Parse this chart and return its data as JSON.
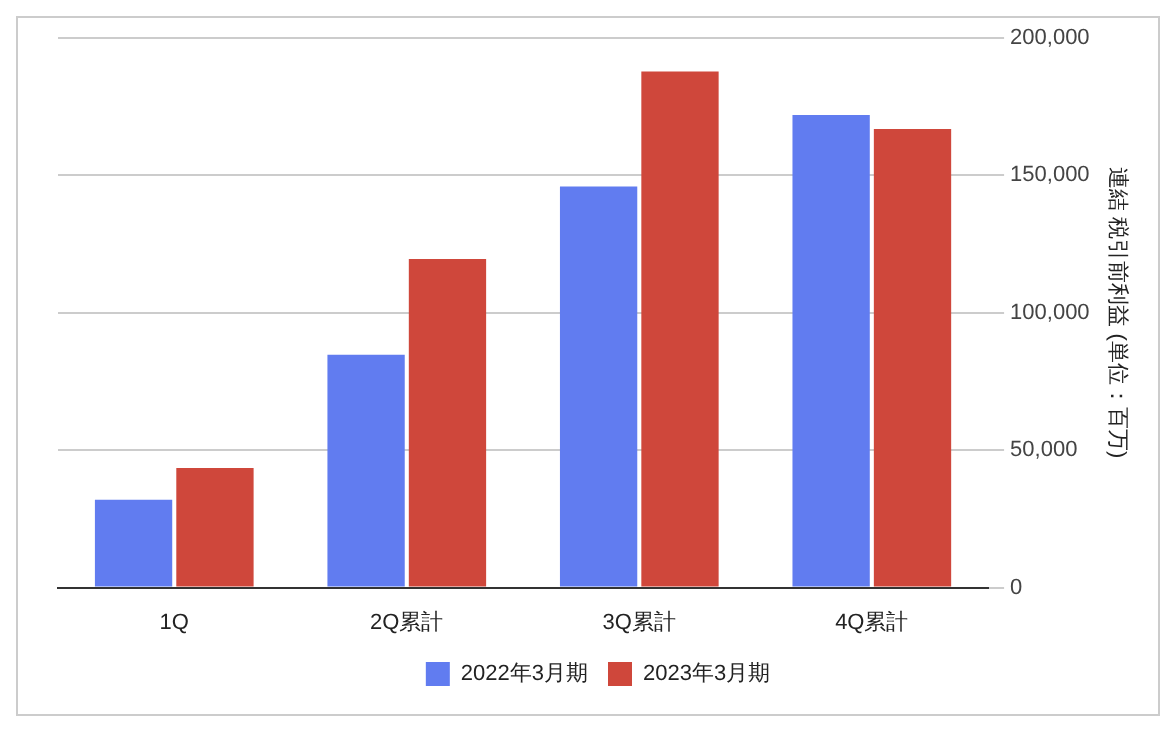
{
  "chart_data": {
    "type": "bar",
    "categories": [
      "1Q",
      "2Q累計",
      "3Q累計",
      "4Q累計"
    ],
    "series": [
      {
        "name": "2022年3月期",
        "color": "#617cf0",
        "values": [
          32000,
          84700,
          146000,
          172000
        ]
      },
      {
        "name": "2023年3月期",
        "color": "#cf473b",
        "values": [
          43500,
          119600,
          187800,
          166900
        ]
      }
    ],
    "ylabel": "連結 税引前利益 (単位：百万)",
    "ylim": [
      0,
      200000
    ],
    "yticks": [
      0,
      {
        "value": 50000,
        "label": "50,000"
      },
      {
        "value": 100000,
        "label": "100,000"
      },
      {
        "value": 150000,
        "label": "150,000"
      },
      {
        "value": 200000,
        "label": "200,000"
      }
    ],
    "grid": "y",
    "legend": "bottom"
  }
}
